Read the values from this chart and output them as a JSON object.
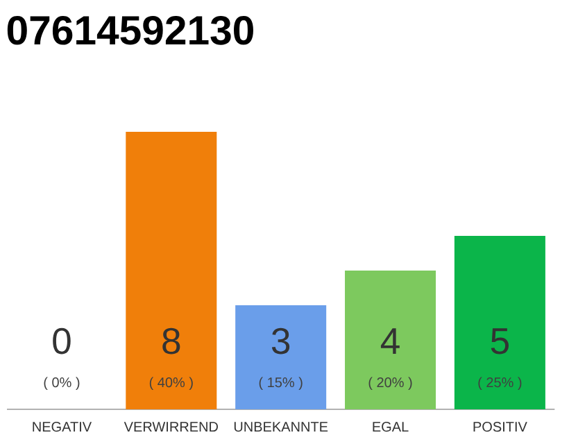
{
  "chart_data": {
    "type": "bar",
    "title": "07614592130",
    "categories": [
      "NEGATIV",
      "VERWIRREND",
      "UNBEKANNTE",
      "EGAL",
      "POSITIV"
    ],
    "values": [
      0,
      8,
      3,
      4,
      5
    ],
    "colors": [
      "#d9d9d9",
      "#f07f0a",
      "#6a9eea",
      "#7dc95e",
      "#0bb54a"
    ],
    "value_labels": [
      "0",
      "8",
      "3",
      "4",
      "5"
    ],
    "annotations": [
      "( 0% )",
      "( 40% )",
      "( 15% )",
      "( 20% )",
      "( 25% )"
    ]
  }
}
